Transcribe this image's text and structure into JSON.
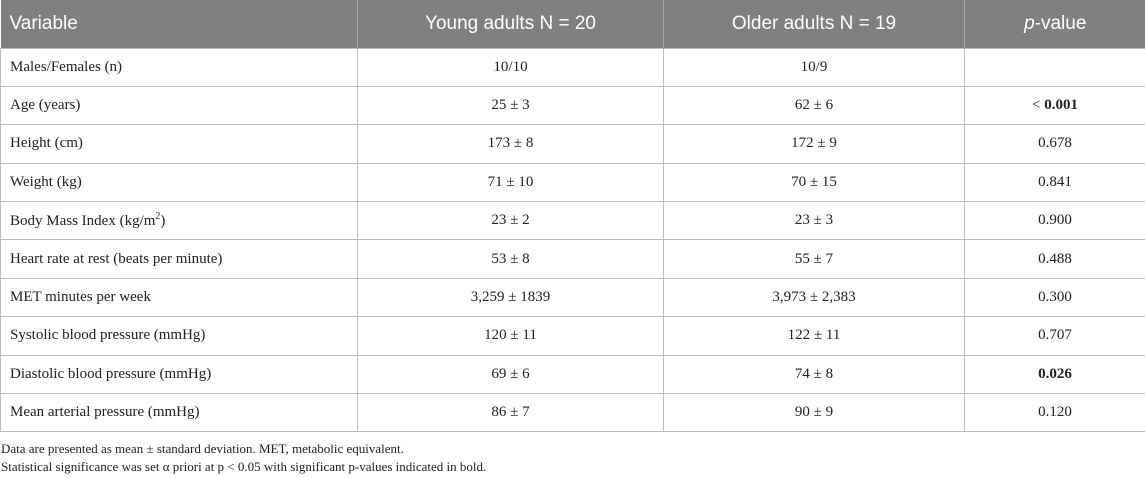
{
  "table": {
    "headers": {
      "variable": "Variable",
      "young": "Young adults N = 20",
      "older": "Older adults N = 19",
      "p_prefix": "p",
      "p_suffix": "-value"
    },
    "rows": [
      {
        "variable": "Males/Females (n)",
        "young": "10/10",
        "older": "10/9",
        "p": ""
      },
      {
        "variable": "Age (years)",
        "young": "25 ± 3",
        "older": "62 ± 6",
        "p_prefix": "< ",
        "p_bold": "0.001"
      },
      {
        "variable": "Height (cm)",
        "young": "173 ± 8",
        "older": "172 ± 9",
        "p": "0.678"
      },
      {
        "variable": "Weight (kg)",
        "young": "71 ± 10",
        "older": "70 ± 15",
        "p": "0.841"
      },
      {
        "variable_prefix": "Body Mass Index (kg/m",
        "variable_sup": "2",
        "variable_suffix": ")",
        "young": "23 ± 2",
        "older": "23 ± 3",
        "p": "0.900"
      },
      {
        "variable": "Heart rate at rest (beats per minute)",
        "young": "53 ± 8",
        "older": "55 ± 7",
        "p": "0.488"
      },
      {
        "variable": "MET minutes per week",
        "young": "3,259 ± 1839",
        "older": "3,973 ± 2,383",
        "p": "0.300"
      },
      {
        "variable": "Systolic blood pressure (mmHg)",
        "young": "120 ± 11",
        "older": "122 ± 11",
        "p": "0.707"
      },
      {
        "variable": "Diastolic blood pressure (mmHg)",
        "young": "69 ± 6",
        "older": "74 ± 8",
        "p": "0.026"
      },
      {
        "variable": "Mean arterial pressure (mmHg)",
        "young": "86 ± 7",
        "older": "90 ± 9",
        "p": "0.120"
      }
    ]
  },
  "notes": {
    "line1": "Data are presented as mean ± standard deviation. MET, metabolic equivalent.",
    "line2": "Statistical significance was set α priori at p < 0.05 with significant p-values indicated in bold."
  }
}
